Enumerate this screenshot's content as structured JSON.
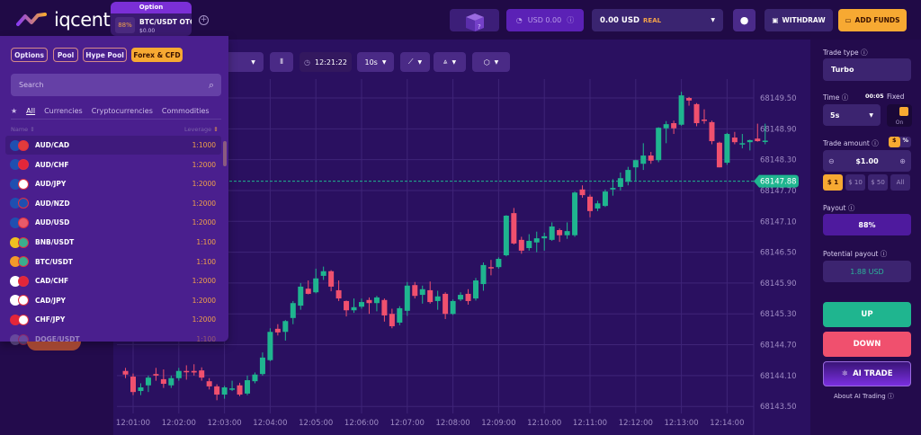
{
  "brand": {
    "name": "iqcent"
  },
  "asset_tab": {
    "header": "Option",
    "payout": "88%",
    "symbol": "BTC/USDT OTC",
    "balance": "$0.00"
  },
  "topbar": {
    "bonus_balance": "USD 0.00",
    "account_value": "0.00 USD",
    "account_type": "REAL",
    "withdraw": "WITHDRAW",
    "add_funds": "ADD FUNDS"
  },
  "asset_panel": {
    "categories": [
      "Options",
      "Pool",
      "Hype Pool",
      "Forex & CFD"
    ],
    "active_category": "Forex & CFD",
    "search_placeholder": "Search",
    "filters": [
      "All",
      "Currencies",
      "Cryptocurrencies",
      "Commodities"
    ],
    "columns": {
      "name": "Name",
      "leverage": "Leverage"
    },
    "rows": [
      {
        "name": "AUD/CAD",
        "leverage": "1:1000",
        "flags": [
          "#1f4fb0",
          "#e23b3b"
        ]
      },
      {
        "name": "AUD/CHF",
        "leverage": "1:2000",
        "flags": [
          "#1f4fb0",
          "#e3263a"
        ]
      },
      {
        "name": "AUD/JPY",
        "leverage": "1:2000",
        "flags": [
          "#1f4fb0",
          "#ffffff"
        ]
      },
      {
        "name": "AUD/NZD",
        "leverage": "1:2000",
        "flags": [
          "#1f4fb0",
          "#1f4fb0"
        ]
      },
      {
        "name": "AUD/USD",
        "leverage": "1:2000",
        "flags": [
          "#1f4fb0",
          "#e85a6a"
        ]
      },
      {
        "name": "BNB/USDT",
        "leverage": "1:100",
        "flags": [
          "#f0c020",
          "#3aae8e"
        ]
      },
      {
        "name": "BTC/USDT",
        "leverage": "1:100",
        "flags": [
          "#f39a2a",
          "#3aae8e"
        ]
      },
      {
        "name": "CAD/CHF",
        "leverage": "1:2000",
        "flags": [
          "#ffffff",
          "#e3263a"
        ]
      },
      {
        "name": "CAD/JPY",
        "leverage": "1:2000",
        "flags": [
          "#ffffff",
          "#ffffff"
        ]
      },
      {
        "name": "CHF/JPY",
        "leverage": "1:2000",
        "flags": [
          "#e3263a",
          "#ffffff"
        ]
      },
      {
        "name": "DOGE/USDT",
        "leverage": "1:100",
        "flags": [
          "#8a7ab0",
          "#8a7ab0"
        ]
      }
    ]
  },
  "toolbar": {
    "clock": "12:21:22",
    "interval": "10s"
  },
  "trade_panel": {
    "trade_type_label": "Trade type",
    "trade_type": "Turbo",
    "time_label": "Time",
    "time_countdown": "00:05",
    "fixed_label": "Fixed",
    "time_value": "5s",
    "toggle_state": "On",
    "amount_label": "Trade amount",
    "mode_dollar": "$",
    "mode_percent": "%",
    "amount": "$1.00",
    "quick_amounts": [
      "$ 1",
      "$ 10",
      "$ 50",
      "All"
    ],
    "payout_label": "Payout",
    "payout": "88%",
    "potential_label": "Potential payout",
    "potential": "1.88 USD",
    "up": "UP",
    "down": "DOWN",
    "ai_trade": "AI TRADE",
    "about_ai": "About AI Trading"
  },
  "colors": {
    "up": "#1fb58f",
    "down": "#f0506e",
    "accent": "#f7a932",
    "purple": "#6b2fd0"
  },
  "chart_data": {
    "type": "candlestick",
    "interval": "10s",
    "current_price": 68147.88,
    "ylim": [
      68143.5,
      68149.5
    ],
    "y_ticks": [
      "68149.50",
      "68148.90",
      "68148.30",
      "68147.70",
      "68147.10",
      "68146.50",
      "68145.90",
      "68145.30",
      "68144.70",
      "68144.10",
      "68143.50"
    ],
    "x_ticks": [
      "12:01:00",
      "12:02:00",
      "12:03:00",
      "12:04:00",
      "12:05:00",
      "12:06:00",
      "12:07:00",
      "12:08:00",
      "12:09:00",
      "12:10:00",
      "12:11:00",
      "12:12:00",
      "12:13:00",
      "12:14:00"
    ],
    "grid": true,
    "candles": [
      [
        "12:00:50",
        68144.19,
        68144.25,
        68144.05,
        68144.12
      ],
      [
        "12:01:00",
        68144.08,
        68144.14,
        68143.72,
        68143.78
      ],
      [
        "12:01:10",
        68143.8,
        68143.95,
        68143.72,
        68143.87
      ],
      [
        "12:01:20",
        68143.91,
        68144.1,
        68143.78,
        68144.06
      ],
      [
        "12:01:30",
        68144.13,
        68144.25,
        68144.0,
        68144.1
      ],
      [
        "12:01:40",
        68144.03,
        68144.22,
        68143.86,
        68143.94
      ],
      [
        "12:01:50",
        68143.91,
        68144.1,
        68143.86,
        68144.05
      ],
      [
        "12:02:00",
        68144.05,
        68144.25,
        68144.0,
        68144.19
      ],
      [
        "12:02:10",
        68144.19,
        68144.3,
        68144.02,
        68144.17
      ],
      [
        "12:02:20",
        68144.19,
        68144.32,
        68144.1,
        68144.16
      ],
      [
        "12:02:30",
        68144.2,
        68144.26,
        68144.0,
        68144.06
      ],
      [
        "12:02:40",
        68143.99,
        68144.05,
        68143.83,
        68143.89
      ],
      [
        "12:02:50",
        68143.89,
        68143.93,
        68143.62,
        68143.73
      ],
      [
        "12:03:00",
        68143.73,
        68143.9,
        68143.65,
        68143.87
      ],
      [
        "12:03:10",
        68143.84,
        68144.0,
        68143.8,
        68143.85
      ],
      [
        "12:03:20",
        68143.91,
        68143.96,
        68143.7,
        68143.73
      ],
      [
        "12:03:30",
        68143.75,
        68144.1,
        68143.72,
        68144.01
      ],
      [
        "12:03:40",
        68143.99,
        68144.16,
        68143.95,
        68144.12
      ],
      [
        "12:03:50",
        68144.13,
        68144.55,
        68144.1,
        68144.45
      ],
      [
        "12:04:00",
        68144.4,
        68145.02,
        68144.38,
        68144.95
      ],
      [
        "12:04:10",
        68145.01,
        68145.1,
        68144.88,
        68144.94
      ],
      [
        "12:04:20",
        68144.95,
        68145.18,
        68144.78,
        68145.16
      ],
      [
        "12:04:30",
        68145.22,
        68145.55,
        68145.1,
        68145.51
      ],
      [
        "12:04:40",
        68145.46,
        68145.9,
        68145.38,
        68145.83
      ],
      [
        "12:04:50",
        68145.79,
        68145.95,
        68145.68,
        68145.69
      ],
      [
        "12:05:00",
        68145.72,
        68146.18,
        68145.7,
        68145.99
      ],
      [
        "12:05:10",
        68146.04,
        68146.22,
        68145.96,
        68146.13
      ],
      [
        "12:05:20",
        68146.13,
        68146.15,
        68145.74,
        68145.83
      ],
      [
        "12:05:30",
        68145.76,
        68145.95,
        68145.55,
        68145.6
      ],
      [
        "12:05:40",
        68145.55,
        68145.56,
        68145.25,
        68145.37
      ],
      [
        "12:05:50",
        68145.37,
        68145.6,
        68145.32,
        68145.43
      ],
      [
        "12:06:00",
        68145.44,
        68145.6,
        68145.4,
        68145.53
      ],
      [
        "12:06:10",
        68145.57,
        68145.62,
        68145.3,
        68145.51
      ],
      [
        "12:06:20",
        68145.51,
        68145.65,
        68145.35,
        68145.62
      ],
      [
        "12:06:30",
        68145.57,
        68145.6,
        68145.15,
        68145.27
      ],
      [
        "12:06:40",
        68145.3,
        68145.4,
        68145.02,
        68145.06
      ],
      [
        "12:06:50",
        68145.13,
        68145.45,
        68145.08,
        68145.41
      ],
      [
        "12:07:00",
        68145.36,
        68145.92,
        68145.26,
        68145.85
      ],
      [
        "12:07:10",
        68145.86,
        68145.92,
        68145.6,
        68145.65
      ],
      [
        "12:07:20",
        68145.67,
        68145.85,
        68145.5,
        68145.78
      ],
      [
        "12:07:30",
        68145.76,
        68145.93,
        68145.5,
        68145.53
      ],
      [
        "12:07:40",
        68145.55,
        68145.75,
        68145.38,
        68145.64
      ],
      [
        "12:07:50",
        68145.69,
        68145.72,
        68145.2,
        68145.3
      ],
      [
        "12:08:00",
        68145.3,
        68145.58,
        68145.28,
        68145.55
      ],
      [
        "12:08:10",
        68145.58,
        68145.72,
        68145.55,
        68145.67
      ],
      [
        "12:08:20",
        68145.69,
        68145.78,
        68145.48,
        68145.55
      ],
      [
        "12:08:30",
        68145.6,
        68146.0,
        68145.56,
        68145.95
      ],
      [
        "12:08:40",
        68145.88,
        68146.3,
        68145.75,
        68146.25
      ],
      [
        "12:08:50",
        68146.21,
        68146.35,
        68146.05,
        68146.2
      ],
      [
        "12:09:00",
        68146.21,
        68146.4,
        68146.18,
        68146.37
      ],
      [
        "12:09:10",
        68146.44,
        68147.22,
        68146.42,
        68147.21
      ],
      [
        "12:09:20",
        68147.26,
        68147.36,
        68146.65,
        68146.67
      ],
      [
        "12:09:30",
        68146.74,
        68146.8,
        68146.47,
        68146.53
      ],
      [
        "12:09:40",
        68146.58,
        68146.85,
        68146.53,
        68146.72
      ],
      [
        "12:09:50",
        68146.69,
        68146.9,
        68146.5,
        68146.77
      ],
      [
        "12:10:00",
        68146.77,
        68146.88,
        68146.53,
        68146.81
      ],
      [
        "12:10:10",
        68146.74,
        68147.08,
        68146.72,
        68147.0
      ],
      [
        "12:10:20",
        68146.93,
        68146.96,
        68146.7,
        68146.83
      ],
      [
        "12:10:30",
        68146.83,
        68147.08,
        68146.76,
        68146.91
      ],
      [
        "12:10:40",
        68146.83,
        68147.68,
        68146.8,
        68147.66
      ],
      [
        "12:10:50",
        68147.72,
        68147.8,
        68147.56,
        68147.61
      ],
      [
        "12:11:00",
        68147.58,
        68147.62,
        68147.18,
        68147.3
      ],
      [
        "12:11:10",
        68147.35,
        68147.5,
        68147.3,
        68147.45
      ],
      [
        "12:11:20",
        68147.4,
        68147.72,
        68147.38,
        68147.68
      ],
      [
        "12:11:30",
        68147.72,
        68147.92,
        68147.6,
        68147.75
      ],
      [
        "12:11:40",
        68147.77,
        68148.05,
        68147.7,
        68147.94
      ],
      [
        "12:11:50",
        68147.87,
        68148.16,
        68147.8,
        68148.1
      ],
      [
        "12:12:00",
        68148.15,
        68148.3,
        68147.88,
        68148.29
      ],
      [
        "12:12:10",
        68148.22,
        68148.62,
        68148.1,
        68148.38
      ],
      [
        "12:12:20",
        68148.38,
        68148.45,
        68148.22,
        68148.28
      ],
      [
        "12:12:30",
        68148.29,
        68148.93,
        68148.25,
        68148.92
      ],
      [
        "12:12:40",
        68148.91,
        68149.05,
        68148.62,
        68148.99
      ],
      [
        "12:12:50",
        68149.01,
        68149.06,
        68148.8,
        68148.91
      ],
      [
        "12:13:00",
        68148.98,
        68149.62,
        68148.96,
        68149.55
      ],
      [
        "12:13:10",
        68149.5,
        68149.52,
        68149.35,
        68149.45
      ],
      [
        "12:13:20",
        68149.38,
        68149.4,
        68148.95,
        68149.01
      ],
      [
        "12:13:30",
        68149.08,
        68149.28,
        68149.0,
        68149.06
      ],
      [
        "12:13:40",
        68149.03,
        68149.06,
        68148.6,
        68148.66
      ],
      [
        "12:13:50",
        68148.63,
        68148.65,
        68148.15,
        68148.15
      ],
      [
        "12:14:00",
        68148.24,
        68148.82,
        68148.2,
        68148.8
      ],
      [
        "12:14:10",
        68148.73,
        68148.84,
        68148.6,
        68148.64
      ],
      [
        "12:14:20",
        68148.61,
        68148.8,
        68148.52,
        68148.62
      ],
      [
        "12:14:30",
        68148.64,
        68148.69,
        68148.48,
        68148.68
      ],
      [
        "12:14:40",
        68148.71,
        68149.0,
        68148.65,
        68148.66
      ],
      [
        "12:14:50",
        68148.66,
        68149.0,
        68148.6,
        68148.67
      ]
    ]
  }
}
